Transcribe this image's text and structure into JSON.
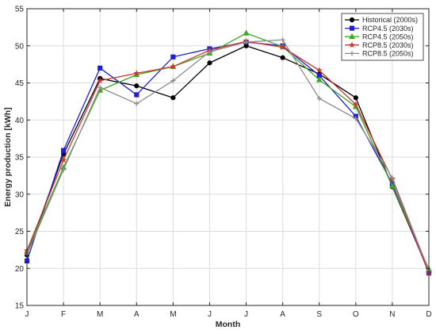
{
  "chart_data": {
    "type": "line",
    "title": "",
    "xlabel": "Month",
    "ylabel": "Energy production [kWh]",
    "categories": [
      "J",
      "F",
      "M",
      "A",
      "M",
      "J",
      "J",
      "A",
      "S",
      "O",
      "N",
      "D"
    ],
    "ylim": [
      15,
      55
    ],
    "yticks": [
      15,
      20,
      25,
      30,
      35,
      40,
      45,
      50,
      55
    ],
    "grid": true,
    "legend_position": "top-right",
    "series": [
      {
        "name": "Historical (2000s)",
        "color": "#000000",
        "marker": "circle",
        "values": [
          21.8,
          35.4,
          45.6,
          44.6,
          43.0,
          47.7,
          50.0,
          48.4,
          46.2,
          43.0,
          31.0,
          19.6
        ]
      },
      {
        "name": "RCP4.5 (2030s)",
        "color": "#1f1fd6",
        "marker": "square",
        "values": [
          21.0,
          35.9,
          47.0,
          43.4,
          48.5,
          49.6,
          50.5,
          50.0,
          46.0,
          40.5,
          31.4,
          19.4
        ]
      },
      {
        "name": "RCP4.5 (2050s)",
        "color": "#3ea822",
        "marker": "triangle",
        "values": [
          22.3,
          33.6,
          44.0,
          46.1,
          47.2,
          49.0,
          51.7,
          49.9,
          45.4,
          41.8,
          31.1,
          19.9
        ]
      },
      {
        "name": "RCP8.5 (2030s)",
        "color": "#cc3333",
        "marker": "star",
        "values": [
          22.4,
          34.6,
          45.3,
          46.3,
          47.2,
          49.4,
          50.6,
          49.8,
          46.7,
          42.1,
          32.0,
          19.3
        ]
      },
      {
        "name": "RCP8.5 (2050s)",
        "color": "#8c8c8c",
        "marker": "plus",
        "values": [
          21.9,
          33.3,
          44.4,
          42.2,
          45.3,
          49.2,
          50.5,
          50.8,
          42.9,
          40.2,
          32.2,
          19.7
        ]
      }
    ]
  }
}
